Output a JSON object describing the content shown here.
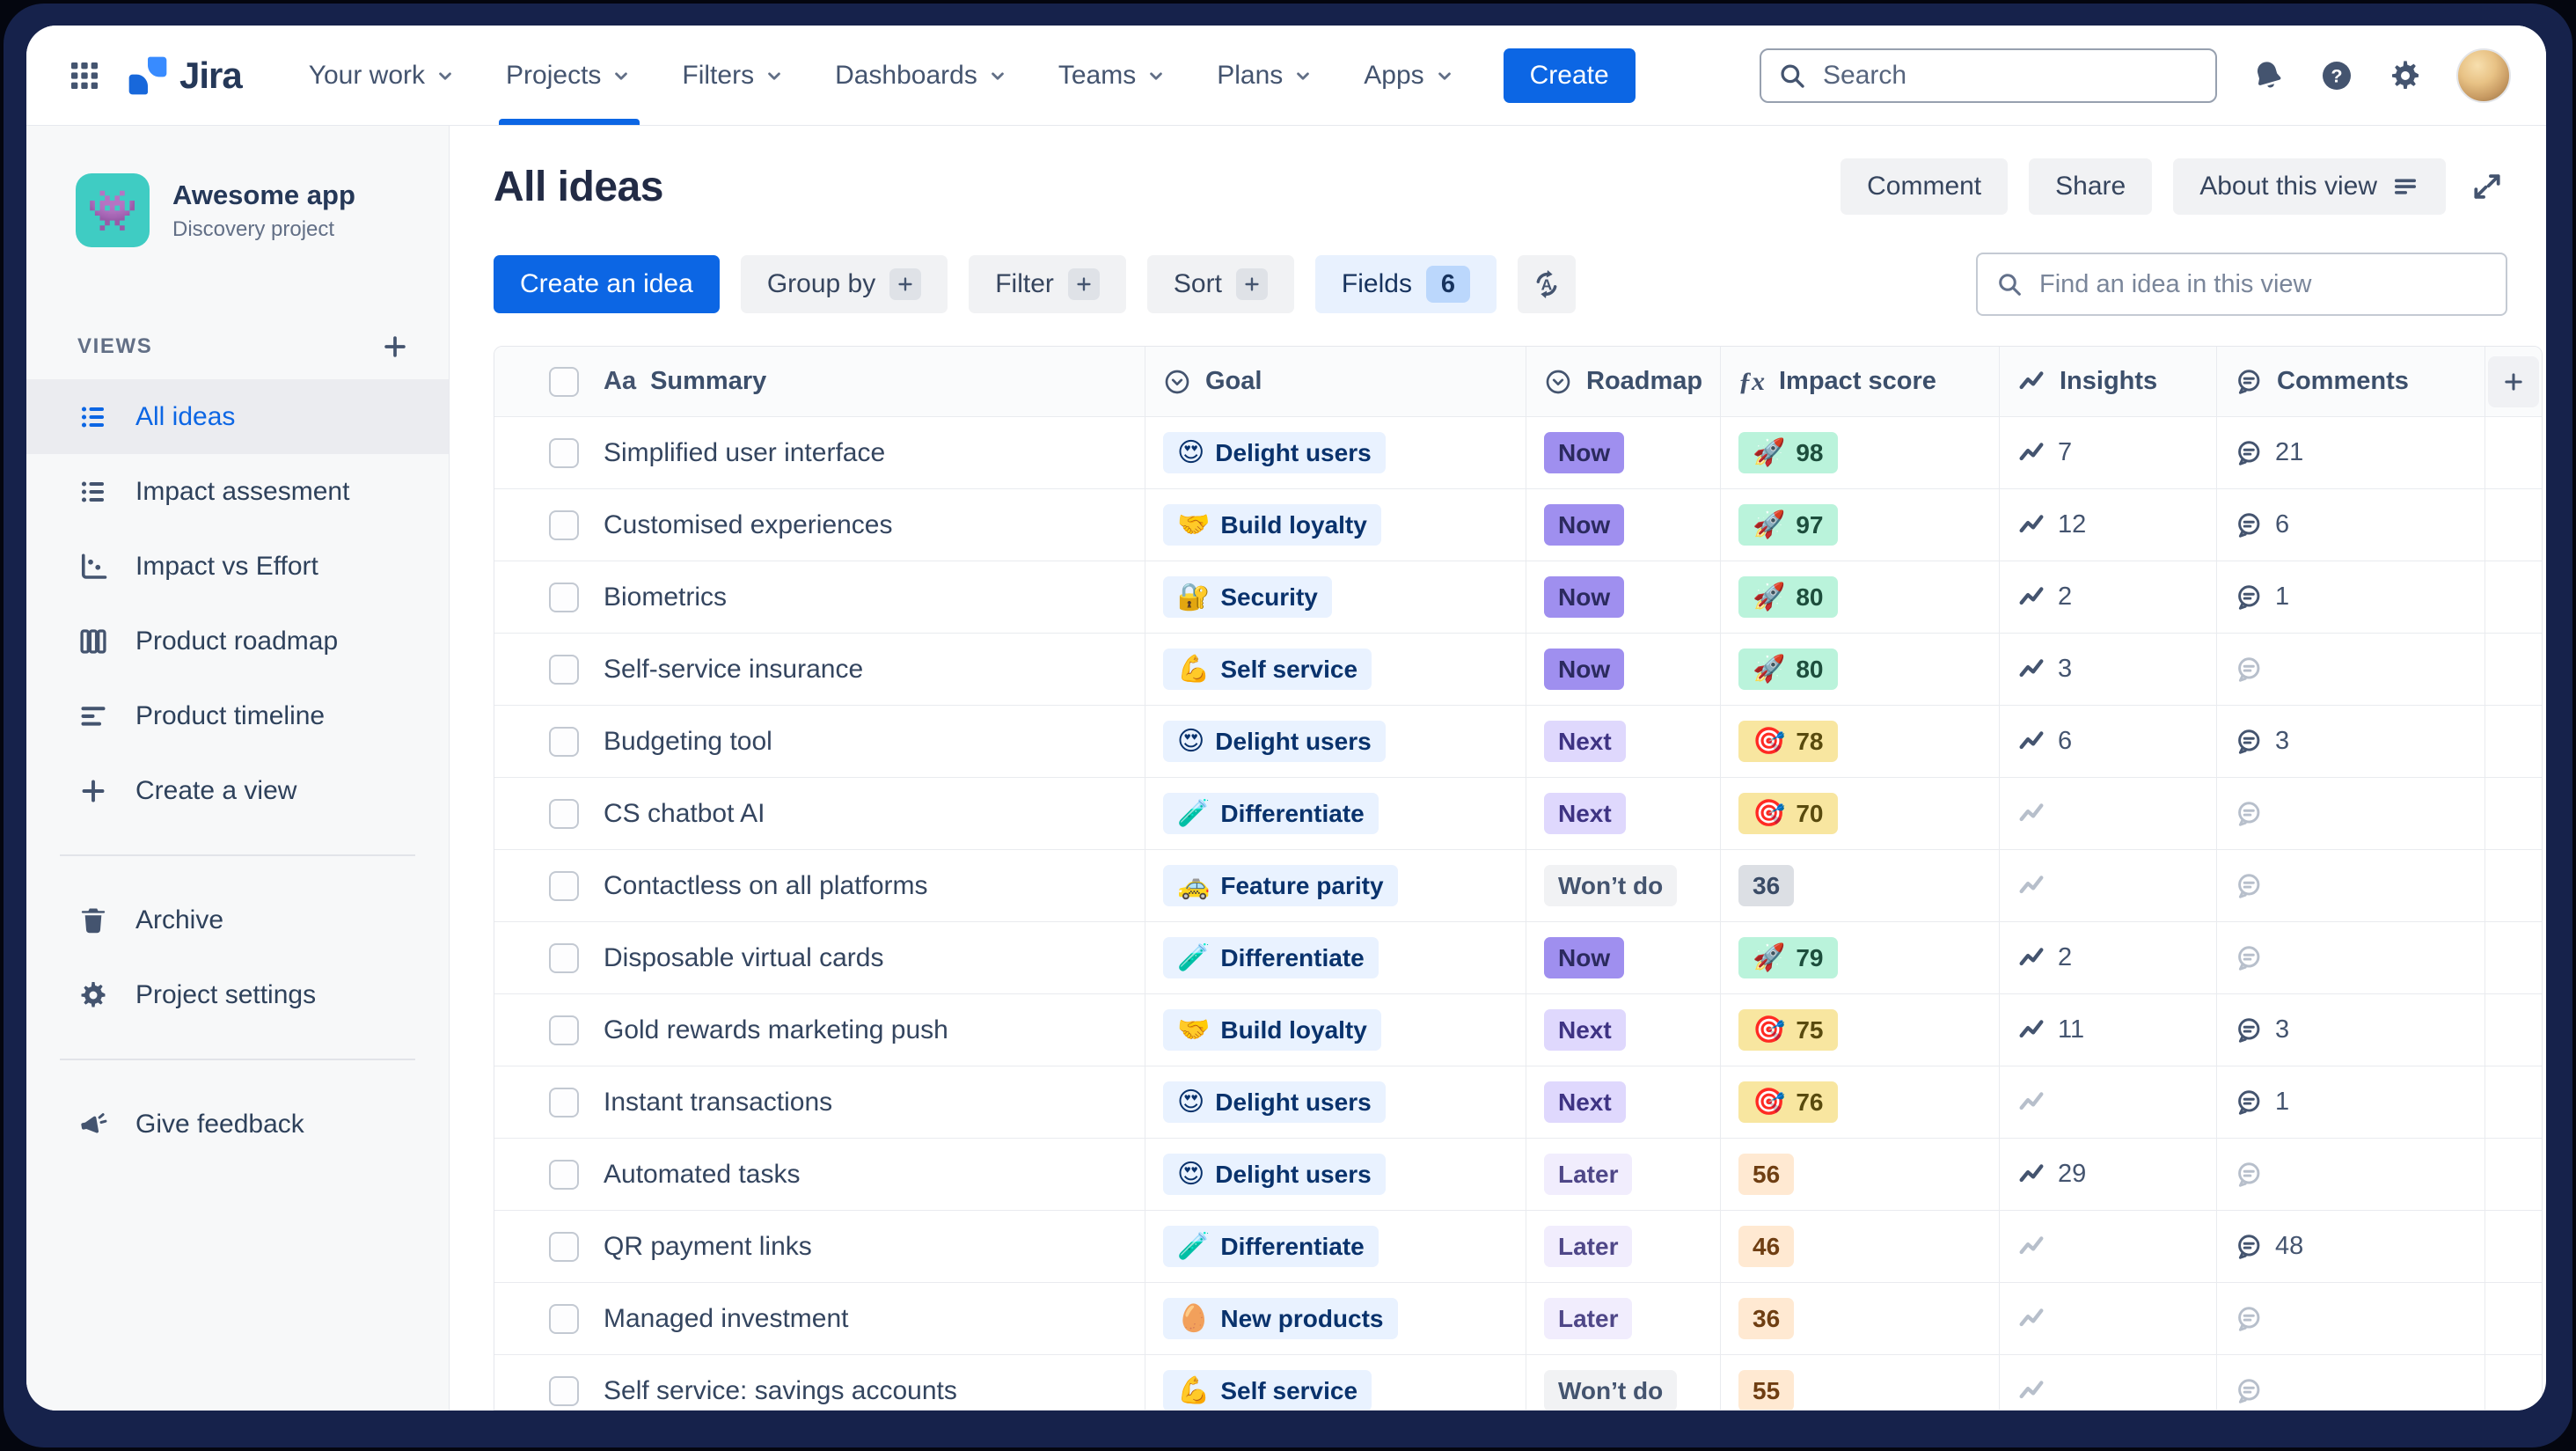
{
  "topnav": {
    "logo_text": "Jira",
    "menu": [
      "Your work",
      "Projects",
      "Filters",
      "Dashboards",
      "Teams",
      "Plans",
      "Apps"
    ],
    "active_menu": "Projects",
    "create_label": "Create",
    "search_placeholder": "Search"
  },
  "sidebar": {
    "project": {
      "name": "Awesome app",
      "type": "Discovery project",
      "icon_emoji": "👾"
    },
    "views_label": "VIEWS",
    "items": [
      {
        "icon": "list-view",
        "label": "All ideas",
        "active": true
      },
      {
        "icon": "list-view",
        "label": "Impact assesment",
        "active": false
      },
      {
        "icon": "scatter-chart",
        "label": "Impact vs Effort",
        "active": false
      },
      {
        "icon": "board-columns",
        "label": "Product roadmap",
        "active": false
      },
      {
        "icon": "timeline",
        "label": "Product timeline",
        "active": false
      },
      {
        "icon": "plus",
        "label": "Create a view",
        "active": false
      }
    ],
    "tools": [
      {
        "icon": "trash",
        "label": "Archive"
      },
      {
        "icon": "gear",
        "label": "Project settings"
      }
    ],
    "footer": [
      {
        "icon": "megaphone",
        "label": "Give feedback"
      }
    ]
  },
  "view": {
    "title": "All ideas",
    "actions": [
      "Comment",
      "Share",
      "About this view"
    ],
    "toolbar": {
      "create": "Create an idea",
      "group_by": "Group by",
      "filter": "Filter",
      "sort": "Sort",
      "fields": "Fields",
      "fields_count": "6"
    },
    "find_placeholder": "Find an idea in this view"
  },
  "colors": {
    "accent_blue": "#0C66E4",
    "goal_chip_bg": "#E9F2FF",
    "roadmap_now_bg": "#9F8FEF",
    "roadmap_next_bg": "#DFD8FD",
    "roadmap_later_bg": "#F1EDFD",
    "roadmap_wont_bg": "#F1F2F4",
    "impact_high_bg": "#BAF3DB",
    "impact_mid_bg": "#F8E6A0",
    "impact_low_bg": "#FFE9D2",
    "impact_gray_bg": "#DCDFE4"
  },
  "table": {
    "columns": [
      {
        "id": "summary",
        "icon": "text-type",
        "label": "Summary"
      },
      {
        "id": "goal",
        "icon": "chevron-circle",
        "label": "Goal"
      },
      {
        "id": "roadmap",
        "icon": "chevron-circle",
        "label": "Roadmap"
      },
      {
        "id": "impact",
        "icon": "formula",
        "label": "Impact score"
      },
      {
        "id": "insights",
        "icon": "trend",
        "label": "Insights"
      },
      {
        "id": "comments",
        "icon": "comment-bubble",
        "label": "Comments"
      }
    ],
    "rows": [
      {
        "summary": "Simplified user interface",
        "goal": {
          "emoji": "😍",
          "label": "Delight users"
        },
        "roadmap": {
          "label": "Now",
          "variant": "now"
        },
        "impact": {
          "value": "98",
          "variant": "high",
          "emoji": "🚀"
        },
        "insights": "7",
        "comments": "21"
      },
      {
        "summary": "Customised experiences",
        "goal": {
          "emoji": "🤝",
          "label": "Build loyalty"
        },
        "roadmap": {
          "label": "Now",
          "variant": "now"
        },
        "impact": {
          "value": "97",
          "variant": "high",
          "emoji": "🚀"
        },
        "insights": "12",
        "comments": "6"
      },
      {
        "summary": "Biometrics",
        "goal": {
          "emoji": "🔐",
          "label": "Security"
        },
        "roadmap": {
          "label": "Now",
          "variant": "now"
        },
        "impact": {
          "value": "80",
          "variant": "high",
          "emoji": "🚀"
        },
        "insights": "2",
        "comments": "1"
      },
      {
        "summary": "Self-service insurance",
        "goal": {
          "emoji": "💪",
          "label": "Self service"
        },
        "roadmap": {
          "label": "Now",
          "variant": "now"
        },
        "impact": {
          "value": "80",
          "variant": "high",
          "emoji": "🚀"
        },
        "insights": "3",
        "comments": null
      },
      {
        "summary": "Budgeting tool",
        "goal": {
          "emoji": "😍",
          "label": "Delight users"
        },
        "roadmap": {
          "label": "Next",
          "variant": "next"
        },
        "impact": {
          "value": "78",
          "variant": "mid",
          "emoji": "🎯"
        },
        "insights": "6",
        "comments": "3"
      },
      {
        "summary": "CS chatbot AI",
        "goal": {
          "emoji": "🧪",
          "label": "Differentiate"
        },
        "roadmap": {
          "label": "Next",
          "variant": "next"
        },
        "impact": {
          "value": "70",
          "variant": "mid",
          "emoji": "🎯"
        },
        "insights": null,
        "comments": null
      },
      {
        "summary": "Contactless on all platforms",
        "goal": {
          "emoji": "🚕",
          "label": "Feature parity"
        },
        "roadmap": {
          "label": "Won’t do",
          "variant": "wont"
        },
        "impact": {
          "value": "36",
          "variant": "none",
          "emoji": null
        },
        "insights": null,
        "comments": null
      },
      {
        "summary": "Disposable virtual cards",
        "goal": {
          "emoji": "🧪",
          "label": "Differentiate"
        },
        "roadmap": {
          "label": "Now",
          "variant": "now"
        },
        "impact": {
          "value": "79",
          "variant": "high",
          "emoji": "🚀"
        },
        "insights": "2",
        "comments": null
      },
      {
        "summary": "Gold rewards marketing push",
        "goal": {
          "emoji": "🤝",
          "label": "Build loyalty"
        },
        "roadmap": {
          "label": "Next",
          "variant": "next"
        },
        "impact": {
          "value": "75",
          "variant": "mid",
          "emoji": "🎯"
        },
        "insights": "11",
        "comments": "3"
      },
      {
        "summary": "Instant transactions",
        "goal": {
          "emoji": "😍",
          "label": "Delight users"
        },
        "roadmap": {
          "label": "Next",
          "variant": "next"
        },
        "impact": {
          "value": "76",
          "variant": "mid",
          "emoji": "🎯"
        },
        "insights": null,
        "comments": "1"
      },
      {
        "summary": "Automated tasks",
        "goal": {
          "emoji": "😍",
          "label": "Delight users"
        },
        "roadmap": {
          "label": "Later",
          "variant": "later"
        },
        "impact": {
          "value": "56",
          "variant": "low",
          "emoji": null
        },
        "insights": "29",
        "comments": null
      },
      {
        "summary": "QR payment links",
        "goal": {
          "emoji": "🧪",
          "label": "Differentiate"
        },
        "roadmap": {
          "label": "Later",
          "variant": "later"
        },
        "impact": {
          "value": "46",
          "variant": "low",
          "emoji": null
        },
        "insights": null,
        "comments": "48"
      },
      {
        "summary": "Managed investment",
        "goal": {
          "emoji": "🥚",
          "label": "New products"
        },
        "roadmap": {
          "label": "Later",
          "variant": "later"
        },
        "impact": {
          "value": "36",
          "variant": "low",
          "emoji": null
        },
        "insights": null,
        "comments": null
      },
      {
        "summary": "Self service: savings accounts",
        "goal": {
          "emoji": "💪",
          "label": "Self service"
        },
        "roadmap": {
          "label": "Won’t do",
          "variant": "wont"
        },
        "impact": {
          "value": "55",
          "variant": "low",
          "emoji": null
        },
        "insights": null,
        "comments": null
      }
    ]
  }
}
